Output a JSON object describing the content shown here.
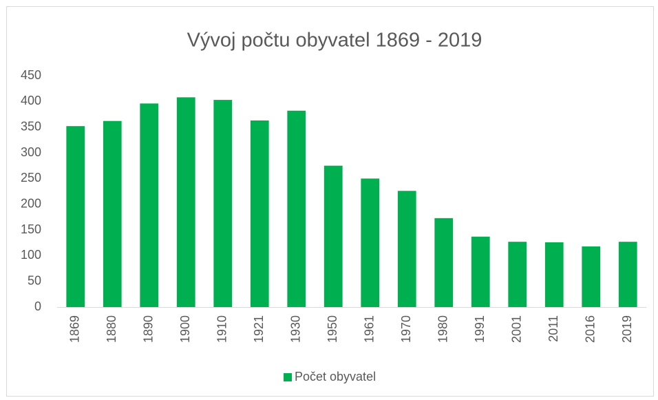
{
  "chart_data": {
    "type": "bar",
    "title": "Vývoj počtu obyvatel 1869 - 2019",
    "categories": [
      "1869",
      "1880",
      "1890",
      "1900",
      "1910",
      "1921",
      "1930",
      "1950",
      "1961",
      "1970",
      "1980",
      "1991",
      "2001",
      "2011",
      "2016",
      "2019"
    ],
    "series": [
      {
        "name": "Počet obyvatel",
        "color": "#00b050",
        "values": [
          352,
          362,
          396,
          408,
          403,
          363,
          382,
          275,
          250,
          226,
          173,
          137,
          127,
          126,
          118,
          127
        ]
      }
    ],
    "ylim": [
      0,
      450
    ],
    "yticks": [
      0,
      50,
      100,
      150,
      200,
      250,
      300,
      350,
      400,
      450
    ],
    "grid": false,
    "legend": "bottom"
  }
}
